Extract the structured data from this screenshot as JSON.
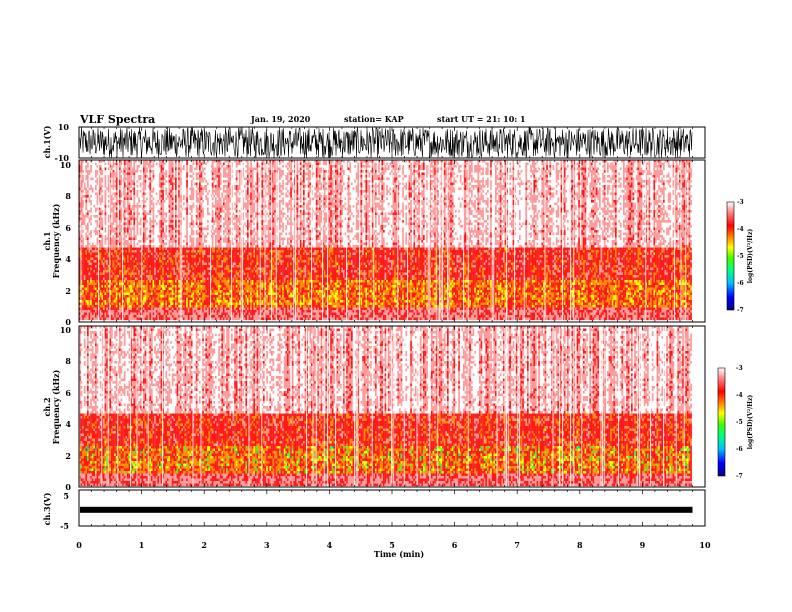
{
  "header": {
    "title": "VLF Spectra",
    "date": "Jan. 19, 2020",
    "station": "station= KAP",
    "start": "start UT =  21: 10: 1"
  },
  "chart_data": [
    {
      "type": "line",
      "name": "ch1-waveform",
      "ylabel": "ch.1(V)",
      "ylim": [
        -10,
        10
      ],
      "yticks": [
        "10",
        "-10"
      ],
      "x_range_min": [
        0,
        9.8
      ],
      "description_of_values": "broadband noise saturating between about -10 and 10 V"
    },
    {
      "type": "heatmap",
      "name": "ch1-spectrogram",
      "ylabel": "ch.1\nFrequency (kHz)",
      "ylim": [
        0,
        10
      ],
      "yticks": [
        "0",
        "2",
        "4",
        "6",
        "8",
        "10"
      ],
      "x_range_min": [
        0,
        9.8
      ],
      "colorbar": {
        "label": "log(PSD)(V²/Hz)",
        "range": [
          -7,
          -3
        ],
        "ticks": [
          "-3",
          "-4",
          "-5",
          "-6",
          "-7"
        ],
        "colors": [
          "#000080",
          "#0000ff",
          "#00c0ff",
          "#00ff80",
          "#40ff00",
          "#ffff00",
          "#ff8000",
          "#ff0000",
          "#ff8080",
          "#ffffff"
        ]
      }
    },
    {
      "type": "heatmap",
      "name": "ch2-spectrogram",
      "ylabel": "ch.2\nFrequency (kHz)",
      "ylim": [
        0,
        10
      ],
      "yticks": [
        "0",
        "2",
        "4",
        "6",
        "8",
        "10"
      ],
      "x_range_min": [
        0,
        9.8
      ],
      "colorbar": {
        "label": "log(PSD)(V²/Hz)",
        "range": [
          -7,
          -3
        ],
        "ticks": [
          "-3",
          "-4",
          "-5",
          "-6",
          "-7"
        ],
        "colors": [
          "#000080",
          "#0000ff",
          "#00c0ff",
          "#00ff80",
          "#40ff00",
          "#ffff00",
          "#ff8000",
          "#ff0000",
          "#ff8080",
          "#ffffff"
        ]
      }
    },
    {
      "type": "line",
      "name": "ch3-waveform",
      "ylabel": "ch.3(V)",
      "ylim": [
        -5,
        5
      ],
      "yticks": [
        "5",
        "-5"
      ],
      "x_range_min": [
        0,
        9.8
      ],
      "approx_value": -0.5
    }
  ],
  "xaxis": {
    "label": "Time (min)",
    "xlim": [
      0,
      10
    ],
    "ticks": [
      "0",
      "1",
      "2",
      "3",
      "4",
      "5",
      "6",
      "7",
      "8",
      "9",
      "10"
    ]
  }
}
